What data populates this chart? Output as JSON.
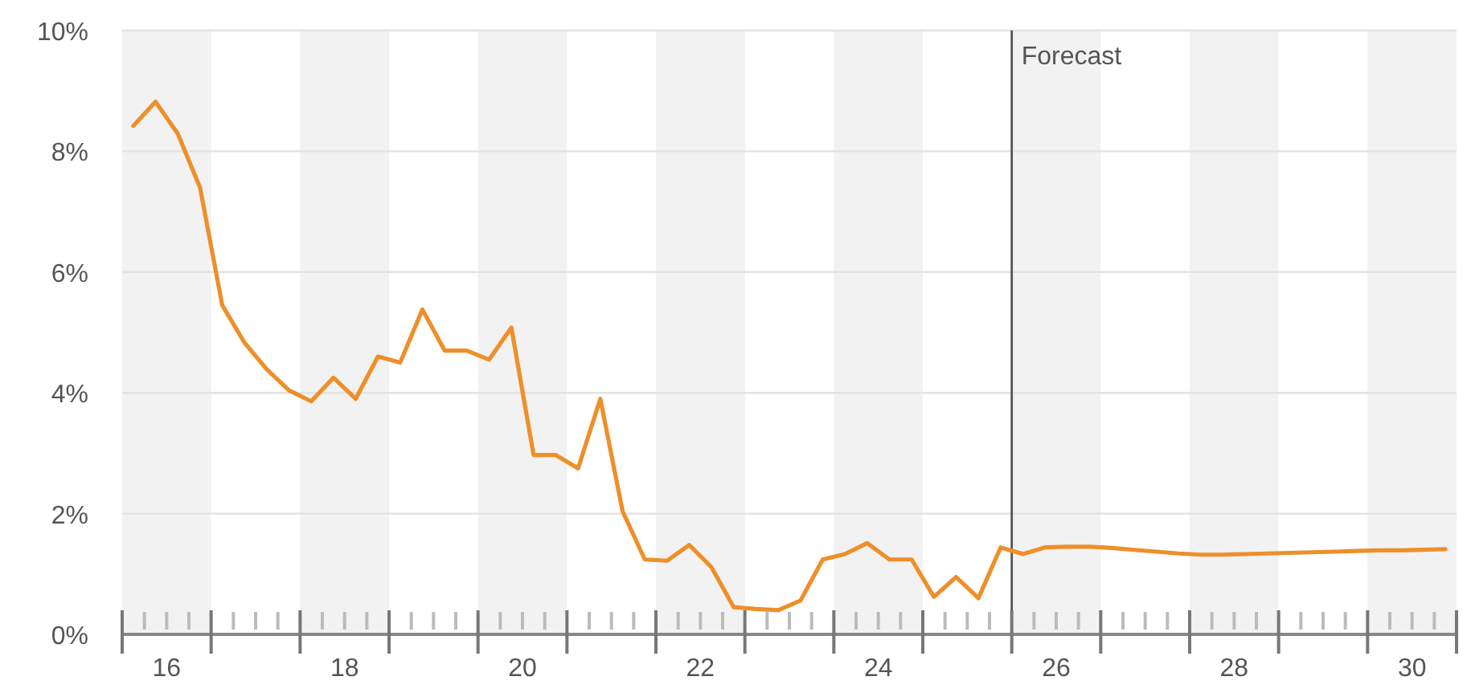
{
  "chart_data": {
    "type": "line",
    "x": [
      15.625,
      15.875,
      16.125,
      16.375,
      16.625,
      16.875,
      17.125,
      17.375,
      17.625,
      17.875,
      18.125,
      18.375,
      18.625,
      18.875,
      19.125,
      19.375,
      19.625,
      19.875,
      20.125,
      20.375,
      20.625,
      20.875,
      21.125,
      21.375,
      21.625,
      21.875,
      22.125,
      22.375,
      22.625,
      22.875,
      23.125,
      23.375,
      23.625,
      23.875,
      24.125,
      24.375,
      24.625,
      24.875,
      25.125,
      25.375,
      25.625,
      25.875,
      26.125,
      26.375,
      26.625,
      26.875,
      27.125,
      27.375,
      27.625,
      27.875,
      28.125,
      28.375,
      28.625,
      28.875,
      29.125,
      29.375,
      29.625,
      29.875,
      30.125,
      30.375
    ],
    "series": [
      {
        "color": "#ee8f2a",
        "values": [
          8.42,
          8.82,
          8.29,
          7.4,
          5.45,
          4.83,
          4.39,
          4.04,
          3.86,
          4.25,
          3.9,
          4.6,
          4.5,
          5.38,
          4.7,
          4.7,
          4.55,
          5.08,
          2.97,
          2.97,
          2.75,
          3.9,
          2.04,
          1.24,
          1.22,
          1.48,
          1.11,
          0.45,
          0.42,
          0.4,
          0.56,
          1.24,
          1.33,
          1.51,
          1.24,
          1.24,
          0.62,
          0.95,
          0.6,
          1.44,
          1.33,
          1.44,
          1.45,
          1.45,
          1.43,
          1.4,
          1.37,
          1.34,
          1.32,
          1.32,
          1.33,
          1.34,
          1.35,
          1.36,
          1.37,
          1.38,
          1.39,
          1.39,
          1.4,
          1.41
        ]
      }
    ],
    "xlim": [
      15.5,
      30.5
    ],
    "xticks": [
      {
        "value": 15.5,
        "label": null
      },
      {
        "value": 15.75,
        "label": null
      },
      16,
      {
        "value": 16.25,
        "label": null
      },
      {
        "value": 16.5,
        "label": null
      },
      {
        "value": 16.75,
        "label": null
      },
      {
        "value": 17,
        "label": null
      },
      {
        "value": 17.25,
        "label": null
      },
      {
        "value": 17.5,
        "label": null
      },
      {
        "value": 17.75,
        "label": null
      },
      18,
      {
        "value": 18.25,
        "label": null
      },
      {
        "value": 18.5,
        "label": null
      },
      {
        "value": 18.75,
        "label": null
      },
      {
        "value": 19,
        "label": null
      },
      {
        "value": 19.25,
        "label": null
      },
      {
        "value": 19.5,
        "label": null
      },
      {
        "value": 19.75,
        "label": null
      },
      20,
      {
        "value": 20.25,
        "label": null
      },
      {
        "value": 20.5,
        "label": null
      },
      {
        "value": 20.75,
        "label": null
      },
      {
        "value": 21,
        "label": null
      },
      {
        "value": 21.25,
        "label": null
      },
      {
        "value": 21.5,
        "label": null
      },
      {
        "value": 21.75,
        "label": null
      },
      22,
      {
        "value": 22.25,
        "label": null
      },
      {
        "value": 22.5,
        "label": null
      },
      {
        "value": 22.75,
        "label": null
      },
      {
        "value": 23,
        "label": null
      },
      {
        "value": 23.25,
        "label": null
      },
      {
        "value": 23.5,
        "label": null
      },
      {
        "value": 23.75,
        "label": null
      },
      24,
      {
        "value": 24.25,
        "label": null
      },
      {
        "value": 24.5,
        "label": null
      },
      {
        "value": 24.75,
        "label": null
      },
      {
        "value": 25,
        "label": null
      },
      {
        "value": 25.25,
        "label": null
      },
      {
        "value": 25.5,
        "label": null
      },
      {
        "value": 25.75,
        "label": null
      },
      26,
      {
        "value": 26.25,
        "label": null
      },
      {
        "value": 26.5,
        "label": null
      },
      {
        "value": 26.75,
        "label": null
      },
      {
        "value": 27,
        "label": null
      },
      {
        "value": 27.25,
        "label": null
      },
      {
        "value": 27.5,
        "label": null
      },
      {
        "value": 27.75,
        "label": null
      },
      28,
      {
        "value": 28.25,
        "label": null
      },
      {
        "value": 28.5,
        "label": null
      },
      {
        "value": 28.75,
        "label": null
      },
      {
        "value": 29,
        "label": null
      },
      {
        "value": 29.25,
        "label": null
      },
      {
        "value": 29.5,
        "label": null
      },
      {
        "value": 29.75,
        "label": null
      },
      30,
      {
        "value": 30.25,
        "label": null
      },
      {
        "value": 30.5,
        "label": null
      }
    ],
    "ylim": [
      0,
      10
    ],
    "yticks": [
      {
        "value": 0,
        "label": "0%"
      },
      {
        "value": 2,
        "label": "2%"
      },
      {
        "value": 4,
        "label": "4%"
      },
      {
        "value": 6,
        "label": "6%"
      },
      {
        "value": 8,
        "label": "8%"
      },
      {
        "value": 10,
        "label": "10%"
      }
    ],
    "grid": "y",
    "marker": "none",
    "line_style": "solid",
    "bands": [
      {
        "axis": "x",
        "from": 15.5,
        "to": 16.5,
        "color": "#f2f2f2"
      },
      {
        "axis": "x",
        "from": 17.5,
        "to": 18.5,
        "color": "#f2f2f2"
      },
      {
        "axis": "x",
        "from": 19.5,
        "to": 20.5,
        "color": "#f2f2f2"
      },
      {
        "axis": "x",
        "from": 21.5,
        "to": 22.5,
        "color": "#f2f2f2"
      },
      {
        "axis": "x",
        "from": 23.5,
        "to": 24.5,
        "color": "#f2f2f2"
      },
      {
        "axis": "x",
        "from": 25.5,
        "to": 26.5,
        "color": "#f2f2f2"
      },
      {
        "axis": "x",
        "from": 27.5,
        "to": 28.5,
        "color": "#f2f2f2"
      },
      {
        "axis": "x",
        "from": 29.5,
        "to": 30.5,
        "color": "#f2f2f2"
      }
    ],
    "ref_lines": [
      {
        "axis": "x",
        "value": 25.5,
        "label": "Forecast",
        "color": "#555555"
      }
    ]
  }
}
